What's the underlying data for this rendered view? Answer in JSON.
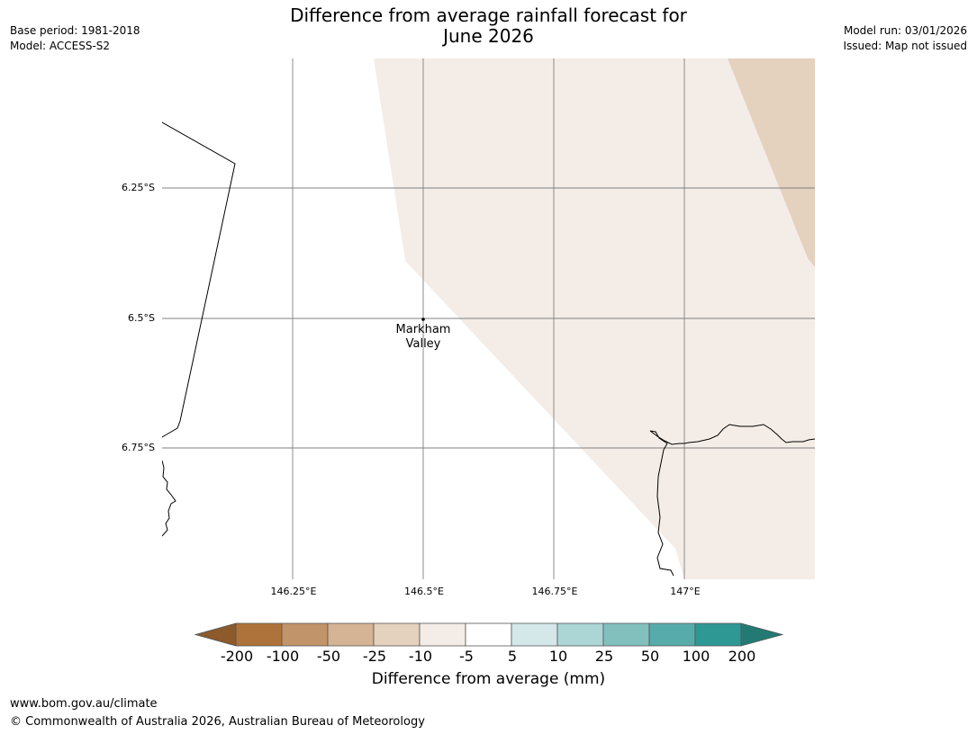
{
  "title": {
    "line1": "Difference from average rainfall forecast for",
    "line2": "June 2026"
  },
  "meta": {
    "base_period": "Base period: 1981-2018",
    "model": "Model: ACCESS-S2",
    "model_run": "Model run: 03/01/2026",
    "issued": "Issued: Map not issued"
  },
  "map": {
    "latitudes": [
      "6.25°S",
      "6.5°S",
      "6.75°S"
    ],
    "longitudes": [
      "146.25°E",
      "146.5°E",
      "146.75°E",
      "147°E"
    ],
    "place": {
      "name_line1": "Markham",
      "name_line2": "Valley"
    },
    "colors": {
      "light_dry": "#f4ede7",
      "dry": "#e4d1be",
      "border": "#000000",
      "grid": "#808080"
    }
  },
  "colorbar": {
    "ticks": [
      "-200",
      "-100",
      "-50",
      "-25",
      "-10",
      "-5",
      "5",
      "10",
      "25",
      "50",
      "100",
      "200"
    ],
    "colors": [
      "#8c5a2b",
      "#ae733a",
      "#c29469",
      "#d4b494",
      "#e4d1be",
      "#f4ede7",
      "#ffffff",
      "#d4e8e9",
      "#acd6d6",
      "#81c0bd",
      "#58abab",
      "#2e9894",
      "#237a74"
    ],
    "label": "Difference from average (mm)"
  },
  "footer": {
    "url": "www.bom.gov.au/climate",
    "copyright": "© Commonwealth of Australia 2026, Australian Bureau of Meteorology"
  }
}
